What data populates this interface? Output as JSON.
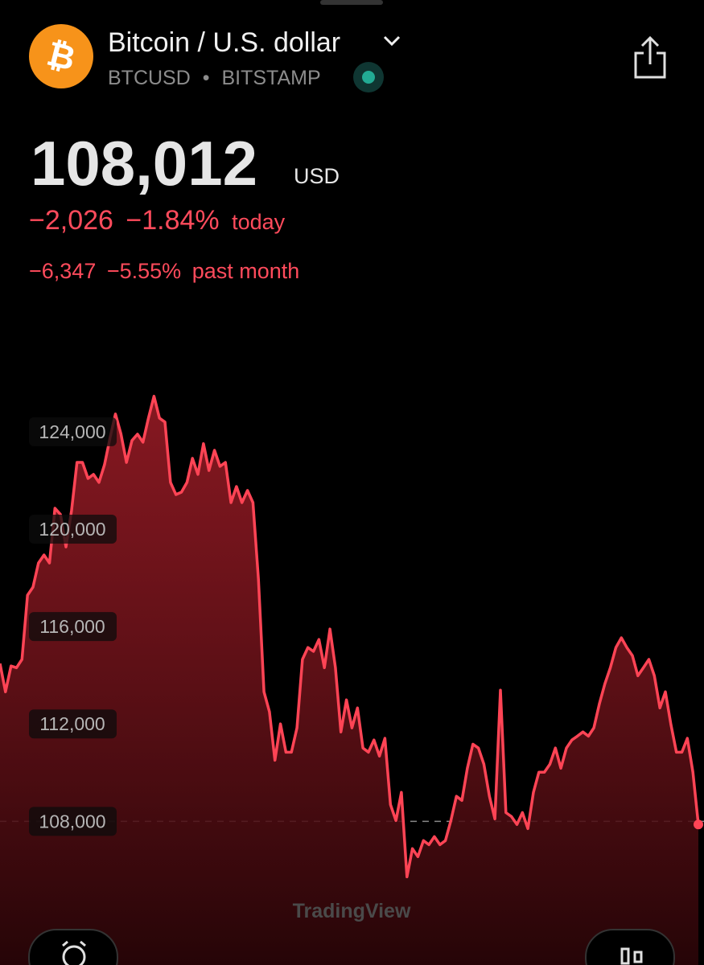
{
  "header": {
    "title": "Bitcoin / U.S. dollar",
    "symbol": "BTCUSD",
    "separator": "•",
    "exchange": "BITSTAMP"
  },
  "quote": {
    "price": "108,012",
    "currency": "USD",
    "change_today": "−2,026",
    "change_today_pct": "−1.84%",
    "today_label": "today",
    "change_month": "−6,347",
    "change_month_pct": "−5.55%",
    "month_label": "past month"
  },
  "watermark": "TradingView",
  "chart_data": {
    "type": "line",
    "color": "#ff4455",
    "ylim": [
      102100,
      127200
    ],
    "yticks": [
      {
        "value": 124000,
        "label": "124,000"
      },
      {
        "value": 120000,
        "label": "120,000"
      },
      {
        "value": 116000,
        "label": "116,000"
      },
      {
        "value": 112000,
        "label": "112,000"
      },
      {
        "value": 108000,
        "label": "108,000"
      }
    ],
    "values": [
      114480,
      113320,
      114380,
      114310,
      114650,
      117290,
      117620,
      118610,
      118940,
      118610,
      120860,
      120600,
      119270,
      120760,
      122740,
      122740,
      122080,
      122250,
      121920,
      122650,
      123740,
      124730,
      123900,
      122740,
      123640,
      123900,
      123570,
      124560,
      125460,
      124560,
      124400,
      121920,
      121420,
      121520,
      121920,
      122910,
      122250,
      123510,
      122410,
      123240,
      122580,
      122740,
      121090,
      121750,
      121090,
      121590,
      121090,
      117950,
      113320,
      112500,
      110510,
      112000,
      110840,
      110840,
      111840,
      114650,
      115140,
      114980,
      115470,
      114310,
      115900,
      114310,
      111670,
      112990,
      111840,
      112660,
      111010,
      110840,
      111340,
      110680,
      111410,
      108690,
      108030,
      109190,
      105720,
      106880,
      106550,
      107210,
      107040,
      107370,
      107040,
      107210,
      108030,
      109030,
      108860,
      110180,
      111170,
      111010,
      110350,
      109030,
      108100,
      113390,
      108360,
      108200,
      107870,
      108360,
      107700,
      109190,
      110020,
      110020,
      110350,
      111010,
      110180,
      111010,
      111340,
      111500,
      111670,
      111500,
      111840,
      112830,
      113650,
      114310,
      115140,
      115540,
      115140,
      114810,
      113980,
      114310,
      114650,
      113980,
      112660,
      113320,
      111990,
      110840,
      110840,
      111410,
      110020,
      107870
    ]
  }
}
